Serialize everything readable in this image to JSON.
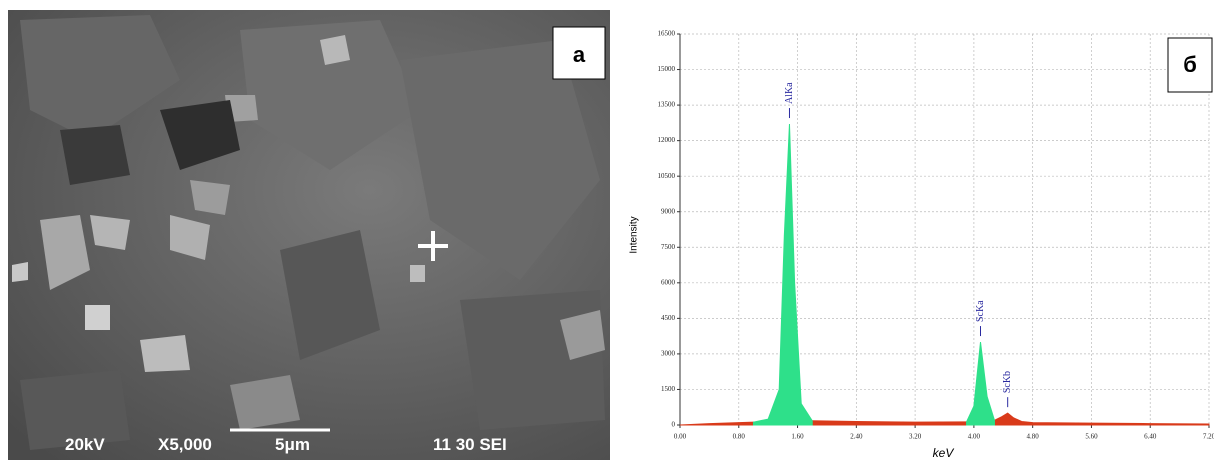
{
  "image_panel": {
    "label": "а",
    "voltage": "20kV",
    "magnification": "X5,000",
    "scale": "5μm",
    "info": "11 30 SEI"
  },
  "chart_data": {
    "type": "area",
    "label": "б",
    "xlabel": "keV",
    "ylabel": "Intensity",
    "x": [
      0,
      0.4,
      0.8,
      1.0,
      1.2,
      1.35,
      1.42,
      1.49,
      1.56,
      1.65,
      1.8,
      2.4,
      3.2,
      3.9,
      4.0,
      4.09,
      4.18,
      4.28,
      4.38,
      4.46,
      4.54,
      4.65,
      4.8,
      5.6,
      6.4,
      7.2
    ],
    "series": [
      {
        "color": "#d93a1a",
        "values": [
          0,
          60,
          100,
          120,
          null,
          null,
          null,
          null,
          null,
          null,
          180,
          150,
          120,
          130,
          null,
          null,
          null,
          200,
          350,
          500,
          300,
          150,
          100,
          80,
          60,
          40
        ]
      },
      {
        "color": "#2ee08a",
        "values": [
          null,
          null,
          null,
          120,
          250,
          1500,
          8000,
          12700,
          6000,
          900,
          180,
          null,
          null,
          130,
          800,
          3500,
          1200,
          200,
          null,
          null,
          null,
          null,
          null,
          null,
          null,
          null
        ]
      }
    ],
    "annotations": [
      {
        "text": "AlKa",
        "x": 1.49,
        "y": 12700
      },
      {
        "text": "ScKa",
        "x": 4.09,
        "y": 3500
      },
      {
        "text": "ScKb",
        "x": 4.46,
        "y": 500
      }
    ],
    "xlim": [
      0,
      7.2
    ],
    "xticks": [
      {
        "value": 0,
        "label": "0.00"
      },
      {
        "value": 0.8,
        "label": "0.80"
      },
      {
        "value": 1.6,
        "label": "1.60"
      },
      {
        "value": 2.4,
        "label": "2.40"
      },
      {
        "value": 3.2,
        "label": "3.20"
      },
      {
        "value": 4.0,
        "label": "4.00"
      },
      {
        "value": 4.8,
        "label": "4.80"
      },
      {
        "value": 5.6,
        "label": "5.60"
      },
      {
        "value": 6.4,
        "label": "6.40"
      },
      {
        "value": 7.2,
        "label": "7.20"
      }
    ],
    "ylim": [
      0,
      16500
    ],
    "yticks": [
      0,
      1500,
      3000,
      4500,
      6000,
      7500,
      9000,
      10500,
      12000,
      13500,
      15000,
      16500
    ],
    "grid": true
  }
}
